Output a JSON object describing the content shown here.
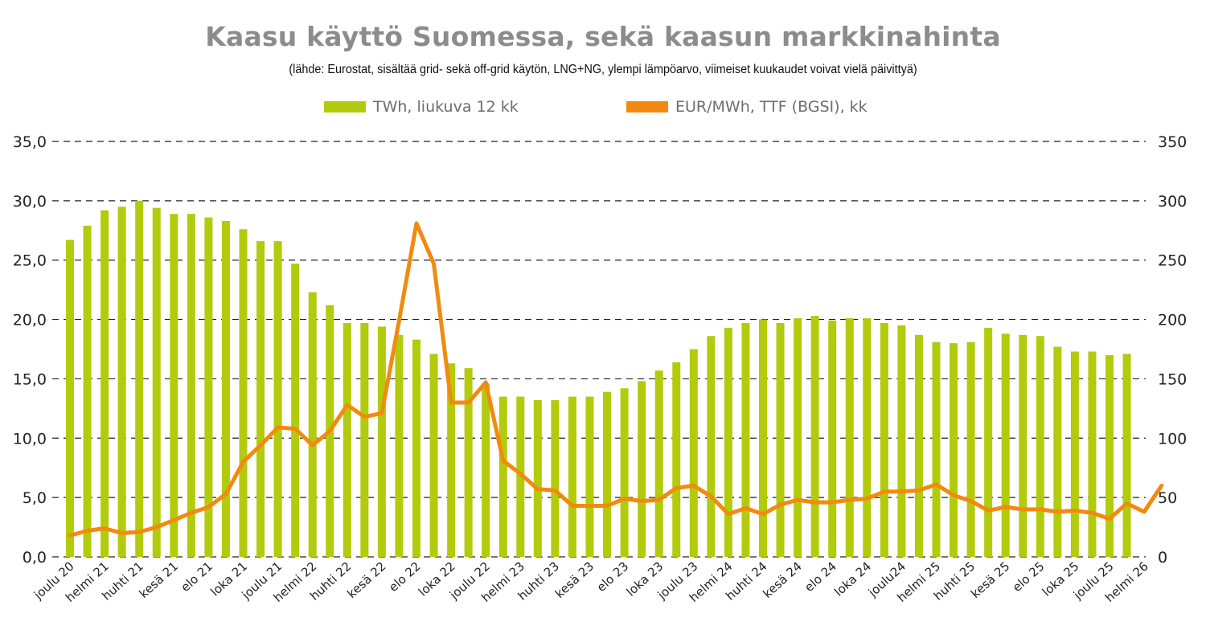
{
  "chart_data": {
    "type": "bar+line",
    "title": "Kaasu käyttö Suomessa, sekä kaasun markkinahinta",
    "subtitle": "(lähde: Eurostat, sisältää grid- sekä off-grid käytön, LNG+NG, ylempi lämpöarvo, viimeiset kuukaudet voivat vielä päivittyä)",
    "legend_position": "top",
    "grid": true,
    "x_tick_labels": [
      "joulu 20",
      "helmi 21",
      "huhti 21",
      "kesä 21",
      "elo 21",
      "loka 21",
      "joulu 21",
      "helmi 22",
      "huhti 22",
      "kesä 22",
      "elo 22",
      "loka 22",
      "joulu 22",
      "helmi 23",
      "huhti 23",
      "kesä 23",
      "elo 23",
      "loka 23",
      "joulu 23",
      "helmi 24",
      "huhti 24",
      "kesä 24",
      "elo 24",
      "loka 24",
      "joulu24",
      "helmi 25",
      "huhti 25",
      "kesä 25",
      "elo 25",
      "loka 25",
      "joulu 25",
      "helmi 26"
    ],
    "y_left": {
      "range": [
        0,
        35
      ],
      "ticks": [
        "0,0",
        "5,0",
        "10,0",
        "15,0",
        "20,0",
        "25,0",
        "30,0",
        "35,0"
      ]
    },
    "y_right": {
      "range": [
        0,
        350
      ],
      "ticks": [
        "0",
        "50",
        "100",
        "150",
        "200",
        "250",
        "300",
        "350"
      ]
    },
    "series": [
      {
        "name": "TWh, liukuva 12 kk",
        "type": "bar",
        "axis": "left",
        "color": "#b2cb0c",
        "values": [
          26.7,
          27.9,
          29.2,
          29.5,
          30.0,
          29.4,
          28.9,
          28.9,
          28.6,
          28.3,
          27.6,
          26.6,
          26.6,
          24.7,
          22.3,
          21.2,
          19.7,
          19.7,
          19.4,
          18.7,
          18.3,
          17.1,
          16.3,
          15.9,
          14.6,
          13.5,
          13.5,
          13.2,
          13.2,
          13.5,
          13.5,
          13.9,
          14.2,
          14.8,
          15.7,
          16.4,
          17.5,
          18.6,
          19.3,
          19.7,
          20.0,
          19.7,
          20.1,
          20.3,
          19.9,
          20.1,
          20.1,
          19.7,
          19.5,
          18.7,
          18.1,
          18.0,
          18.1,
          19.3,
          18.8,
          18.7,
          18.6,
          17.7,
          17.3,
          17.3,
          17.0,
          17.1,
          null,
          null
        ]
      },
      {
        "name": "EUR/MWh, TTF (BGSI), kk",
        "type": "line",
        "axis": "right",
        "color": "#f28a10",
        "values": [
          18,
          22,
          24,
          20,
          21,
          25,
          31,
          37,
          42,
          53,
          80,
          94,
          109,
          108,
          94,
          106,
          128,
          118,
          121,
          199,
          281,
          247,
          130,
          130,
          147,
          81,
          70,
          57,
          56,
          43,
          43,
          43,
          49,
          47,
          48,
          58,
          60,
          51,
          36,
          41,
          36,
          44,
          48,
          46,
          46,
          48,
          49,
          55,
          55,
          56,
          61,
          52,
          47,
          39,
          42,
          40,
          40,
          38,
          39,
          37,
          32,
          45,
          38,
          60
        ]
      }
    ]
  }
}
